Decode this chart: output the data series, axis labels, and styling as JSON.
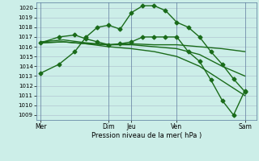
{
  "bg_color": "#cceee8",
  "grid_color": "#aabbcc",
  "line_color": "#1a6b1a",
  "ylim": [
    1008.5,
    1020.5
  ],
  "yticks": [
    1009,
    1010,
    1011,
    1012,
    1013,
    1014,
    1015,
    1016,
    1017,
    1018,
    1019,
    1020
  ],
  "xlabel": "Pression niveau de la mer( hPa )",
  "xtick_labels": [
    "Mer",
    "Dim",
    "Jeu",
    "Ven",
    "Sam"
  ],
  "xtick_positions": [
    0,
    3,
    4,
    6,
    9
  ],
  "vline_positions": [
    0,
    3,
    4,
    6,
    9
  ],
  "xlim": [
    -0.2,
    9.5
  ],
  "series": [
    {
      "x": [
        0.0,
        0.8,
        1.5,
        2.0,
        2.5,
        3.0,
        3.5,
        4.0,
        4.5,
        5.0,
        5.5,
        6.0,
        6.5,
        7.0,
        7.5,
        8.0,
        8.5,
        9.0
      ],
      "y": [
        1013.3,
        1014.2,
        1015.5,
        1017.0,
        1018.0,
        1018.2,
        1017.8,
        1019.5,
        1020.2,
        1020.2,
        1019.7,
        1018.5,
        1018.0,
        1017.0,
        1015.5,
        1014.2,
        1012.7,
        1011.4
      ],
      "marker": "D",
      "markersize": 2.5,
      "linewidth": 1.0
    },
    {
      "x": [
        0.0,
        0.8,
        1.5,
        2.0,
        2.5,
        3.0,
        3.5,
        4.0,
        4.5,
        5.0,
        5.5,
        6.0,
        6.5,
        7.0,
        7.5,
        8.0,
        8.5,
        9.0
      ],
      "y": [
        1016.4,
        1017.0,
        1017.2,
        1016.8,
        1016.5,
        1016.2,
        1016.3,
        1016.5,
        1017.0,
        1017.0,
        1017.0,
        1017.0,
        1015.5,
        1014.5,
        1012.6,
        1010.5,
        1009.0,
        1011.5
      ],
      "marker": "D",
      "markersize": 2.5,
      "linewidth": 1.0
    },
    {
      "x": [
        0.0,
        1.0,
        2.0,
        3.0,
        4.0,
        5.0,
        6.0,
        7.0,
        8.0,
        9.0
      ],
      "y": [
        1016.4,
        1016.5,
        1016.3,
        1016.2,
        1016.3,
        1016.2,
        1016.2,
        1016.0,
        1015.8,
        1015.5
      ],
      "marker": null,
      "markersize": 0,
      "linewidth": 1.0
    },
    {
      "x": [
        0.0,
        1.0,
        2.0,
        3.0,
        4.0,
        5.0,
        6.0,
        7.0,
        8.0,
        9.0
      ],
      "y": [
        1016.5,
        1016.7,
        1016.4,
        1016.2,
        1016.2,
        1016.0,
        1015.8,
        1015.2,
        1014.0,
        1013.0
      ],
      "marker": null,
      "markersize": 0,
      "linewidth": 1.0
    },
    {
      "x": [
        0.0,
        1.0,
        2.0,
        3.0,
        4.0,
        5.0,
        6.0,
        7.0,
        8.0,
        9.0
      ],
      "y": [
        1016.4,
        1016.5,
        1016.3,
        1016.0,
        1015.8,
        1015.5,
        1015.0,
        1014.0,
        1012.5,
        1011.0
      ],
      "marker": null,
      "markersize": 0,
      "linewidth": 1.0
    }
  ]
}
